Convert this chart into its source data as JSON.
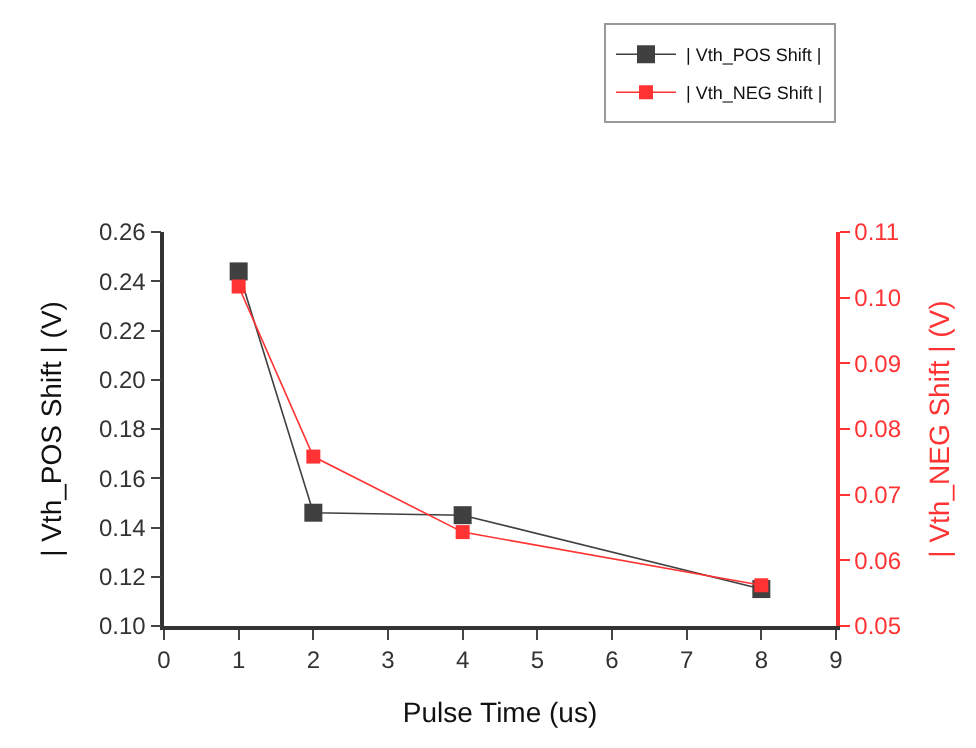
{
  "chart_data": {
    "type": "line",
    "xlabel": "Pulse Time (us)",
    "ylabel": "| Vth_POS Shift | (V)",
    "y2label": "| Vth_NEG Shift | (V)",
    "x": [
      1,
      2,
      4,
      8
    ],
    "series": [
      {
        "name": "| Vth_POS Shift |",
        "color": "#404040",
        "values": [
          0.244,
          0.146,
          0.145,
          0.115
        ]
      },
      {
        "name": "| Vth_NEG Shift |",
        "color": "#ff3333",
        "values": [
          0.1017,
          0.0758,
          0.0643,
          0.0562
        ],
        "axis": "y2"
      }
    ],
    "xlim": [
      0,
      9
    ],
    "xticks": [
      0,
      1,
      2,
      3,
      4,
      5,
      6,
      7,
      8,
      9
    ],
    "ylim": [
      0.1,
      0.26
    ],
    "yticks": [
      {
        "value": 0.1,
        "label": "0.10"
      },
      0.12,
      0.14,
      0.16,
      0.18,
      {
        "value": 0.2,
        "label": "0.20"
      },
      0.22,
      0.24,
      0.26
    ],
    "y2lim": [
      0.05,
      0.11
    ],
    "y2ticks": [
      0.05,
      0.06,
      0.07,
      0.08,
      0.09,
      {
        "value": 0.1,
        "label": "0.10"
      },
      0.11
    ],
    "marker": "square",
    "line_style": "solid",
    "legend": "top right"
  }
}
